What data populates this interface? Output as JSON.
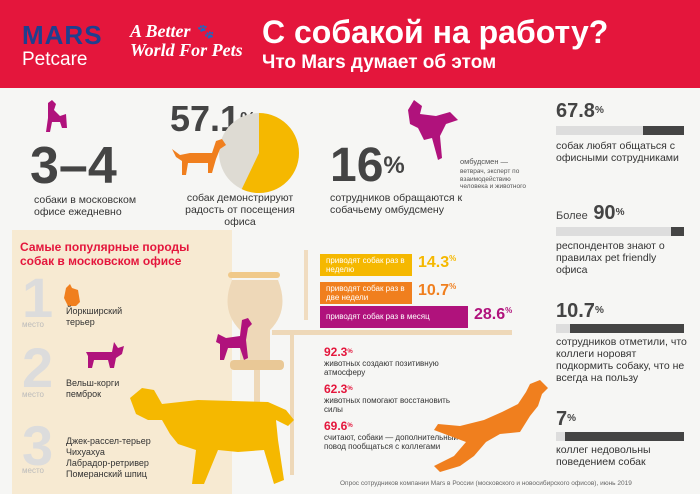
{
  "header": {
    "brand_top": "MARS",
    "brand_bottom": "Petcare",
    "slogan_line1": "A Better",
    "slogan_line2": "World For Pets",
    "title": "С собакой на работу?",
    "subtitle": "Что Mars думает об этом"
  },
  "stats": {
    "dogs_count": {
      "value": "3–4",
      "label": "собаки в московском офисе ежедневно"
    },
    "joy": {
      "value": "57.1",
      "unit": "%",
      "label": "собак демонстрируют радость от посещения офиса",
      "fraction": 0.571
    },
    "ombudsman": {
      "value": "16",
      "unit": "%",
      "label": "сотрудников обращаются к собачьему омбудсмену",
      "note_title": "омбудсмен —",
      "note_text": "ветврач, эксперт по взаимодействию человека и животного"
    },
    "social": {
      "value": "67.8",
      "unit": "%",
      "label": "собак любят общаться с офисными сотрудниками",
      "fraction": 0.678
    },
    "rules": {
      "prefix": "Более",
      "value": "90",
      "unit": "%",
      "label": "респондентов знают о правилах pet friendly офиса",
      "fraction": 0.9
    },
    "disturb": {
      "value": "10.7",
      "unit": "%",
      "label": "сотрудников отметили, что коллеги норовят подкормить собаку, что не всегда на пользу",
      "fraction": 0.107
    },
    "unhappy": {
      "value": "7",
      "unit": "%",
      "label": "коллег недовольны поведением собак",
      "fraction": 0.07
    }
  },
  "frequency": [
    {
      "label": "приводят собак раз в неделю",
      "value": "14.3",
      "unit": "%",
      "color": "#f5b800"
    },
    {
      "label": "приводят собак раз в две недели",
      "value": "10.7",
      "unit": "%",
      "color": "#f07f1e"
    },
    {
      "label": "приводят собак раз в месяц",
      "value": "28.6",
      "unit": "%",
      "color": "#b0127c"
    }
  ],
  "atmosphere": [
    {
      "value": "92.3",
      "unit": "%",
      "label": "животных создают позитивную атмосферу"
    },
    {
      "value": "62.3",
      "unit": "%",
      "label": "животных помогают восстановить силы"
    },
    {
      "value": "69.6",
      "unit": "%",
      "label": "считают, собаки — дополнительный повод пообщаться с коллегами"
    }
  ],
  "breeds": {
    "title": "Самые популярные породы собак в московском офисе",
    "place_word": "место",
    "places": [
      {
        "num": "1",
        "names": [
          "Йоркширский",
          "терьер"
        ]
      },
      {
        "num": "2",
        "names": [
          "Вельш-корги",
          "пемброк"
        ]
      },
      {
        "num": "3",
        "names": [
          "Джек-рассел-терьер",
          "Чихуахуа",
          "Лабрадор-ретривер",
          "Померанский шпиц"
        ]
      }
    ]
  },
  "footer": "Опрос сотрудников компании Mars в России (московского и новосибирского офисов), июнь 2019",
  "colors": {
    "red": "#e4163c",
    "yellow": "#f5b800",
    "orange": "#f07f1e",
    "purple": "#b0127c",
    "dark": "#444444"
  }
}
